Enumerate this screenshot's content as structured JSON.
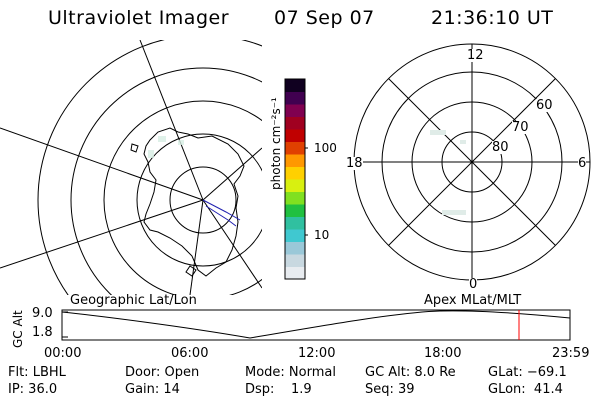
{
  "header": {
    "instrument": "Ultraviolet Imager",
    "date": "07 Sep 07",
    "time": "21:36:10 UT"
  },
  "map_left": {
    "caption": "Geographic Lat/Lon"
  },
  "map_right": {
    "caption": "Apex MLat/MLT",
    "mlt_labels": {
      "top": "12",
      "bottom": "0",
      "left": "18",
      "right": "6"
    },
    "lat_labels": [
      "80",
      "70",
      "60"
    ]
  },
  "colorbar": {
    "unit_label": "photon cm⁻²s⁻¹",
    "ticks": [
      "100",
      "10"
    ],
    "colors": [
      "#e8ecf0",
      "#c8d8e0",
      "#9ac8d8",
      "#40c8d0",
      "#30c0a0",
      "#20c040",
      "#80e020",
      "#d8f010",
      "#ffd000",
      "#ff9800",
      "#e04000",
      "#c00000",
      "#a00020",
      "#800050",
      "#400050",
      "#100020"
    ]
  },
  "altitude_plot": {
    "ylabel": "GC Alt",
    "yticks": [
      "9.0",
      "1.8"
    ],
    "xticks": [
      "00:00",
      "06:00",
      "12:00",
      "18:00",
      "23:59"
    ],
    "marker_color": "#ff0000"
  },
  "status": {
    "row1": [
      {
        "key": "flt",
        "text": "Flt: LBHL"
      },
      {
        "key": "door",
        "text": "Door: Open"
      },
      {
        "key": "mode",
        "text": "Mode: Normal"
      },
      {
        "key": "gcalt",
        "text": "GC Alt: 8.0 Re"
      },
      {
        "key": "glat",
        "text": "GLat: −69.1"
      }
    ],
    "row2": [
      {
        "key": "ip",
        "text": "IP: 36.0"
      },
      {
        "key": "gain",
        "text": "Gain: 14"
      },
      {
        "key": "dsp",
        "text": "Dsp:    1.9"
      },
      {
        "key": "seq",
        "text": "Seq: 39"
      },
      {
        "key": "glon",
        "text": "GLon:  41.4"
      }
    ]
  }
}
